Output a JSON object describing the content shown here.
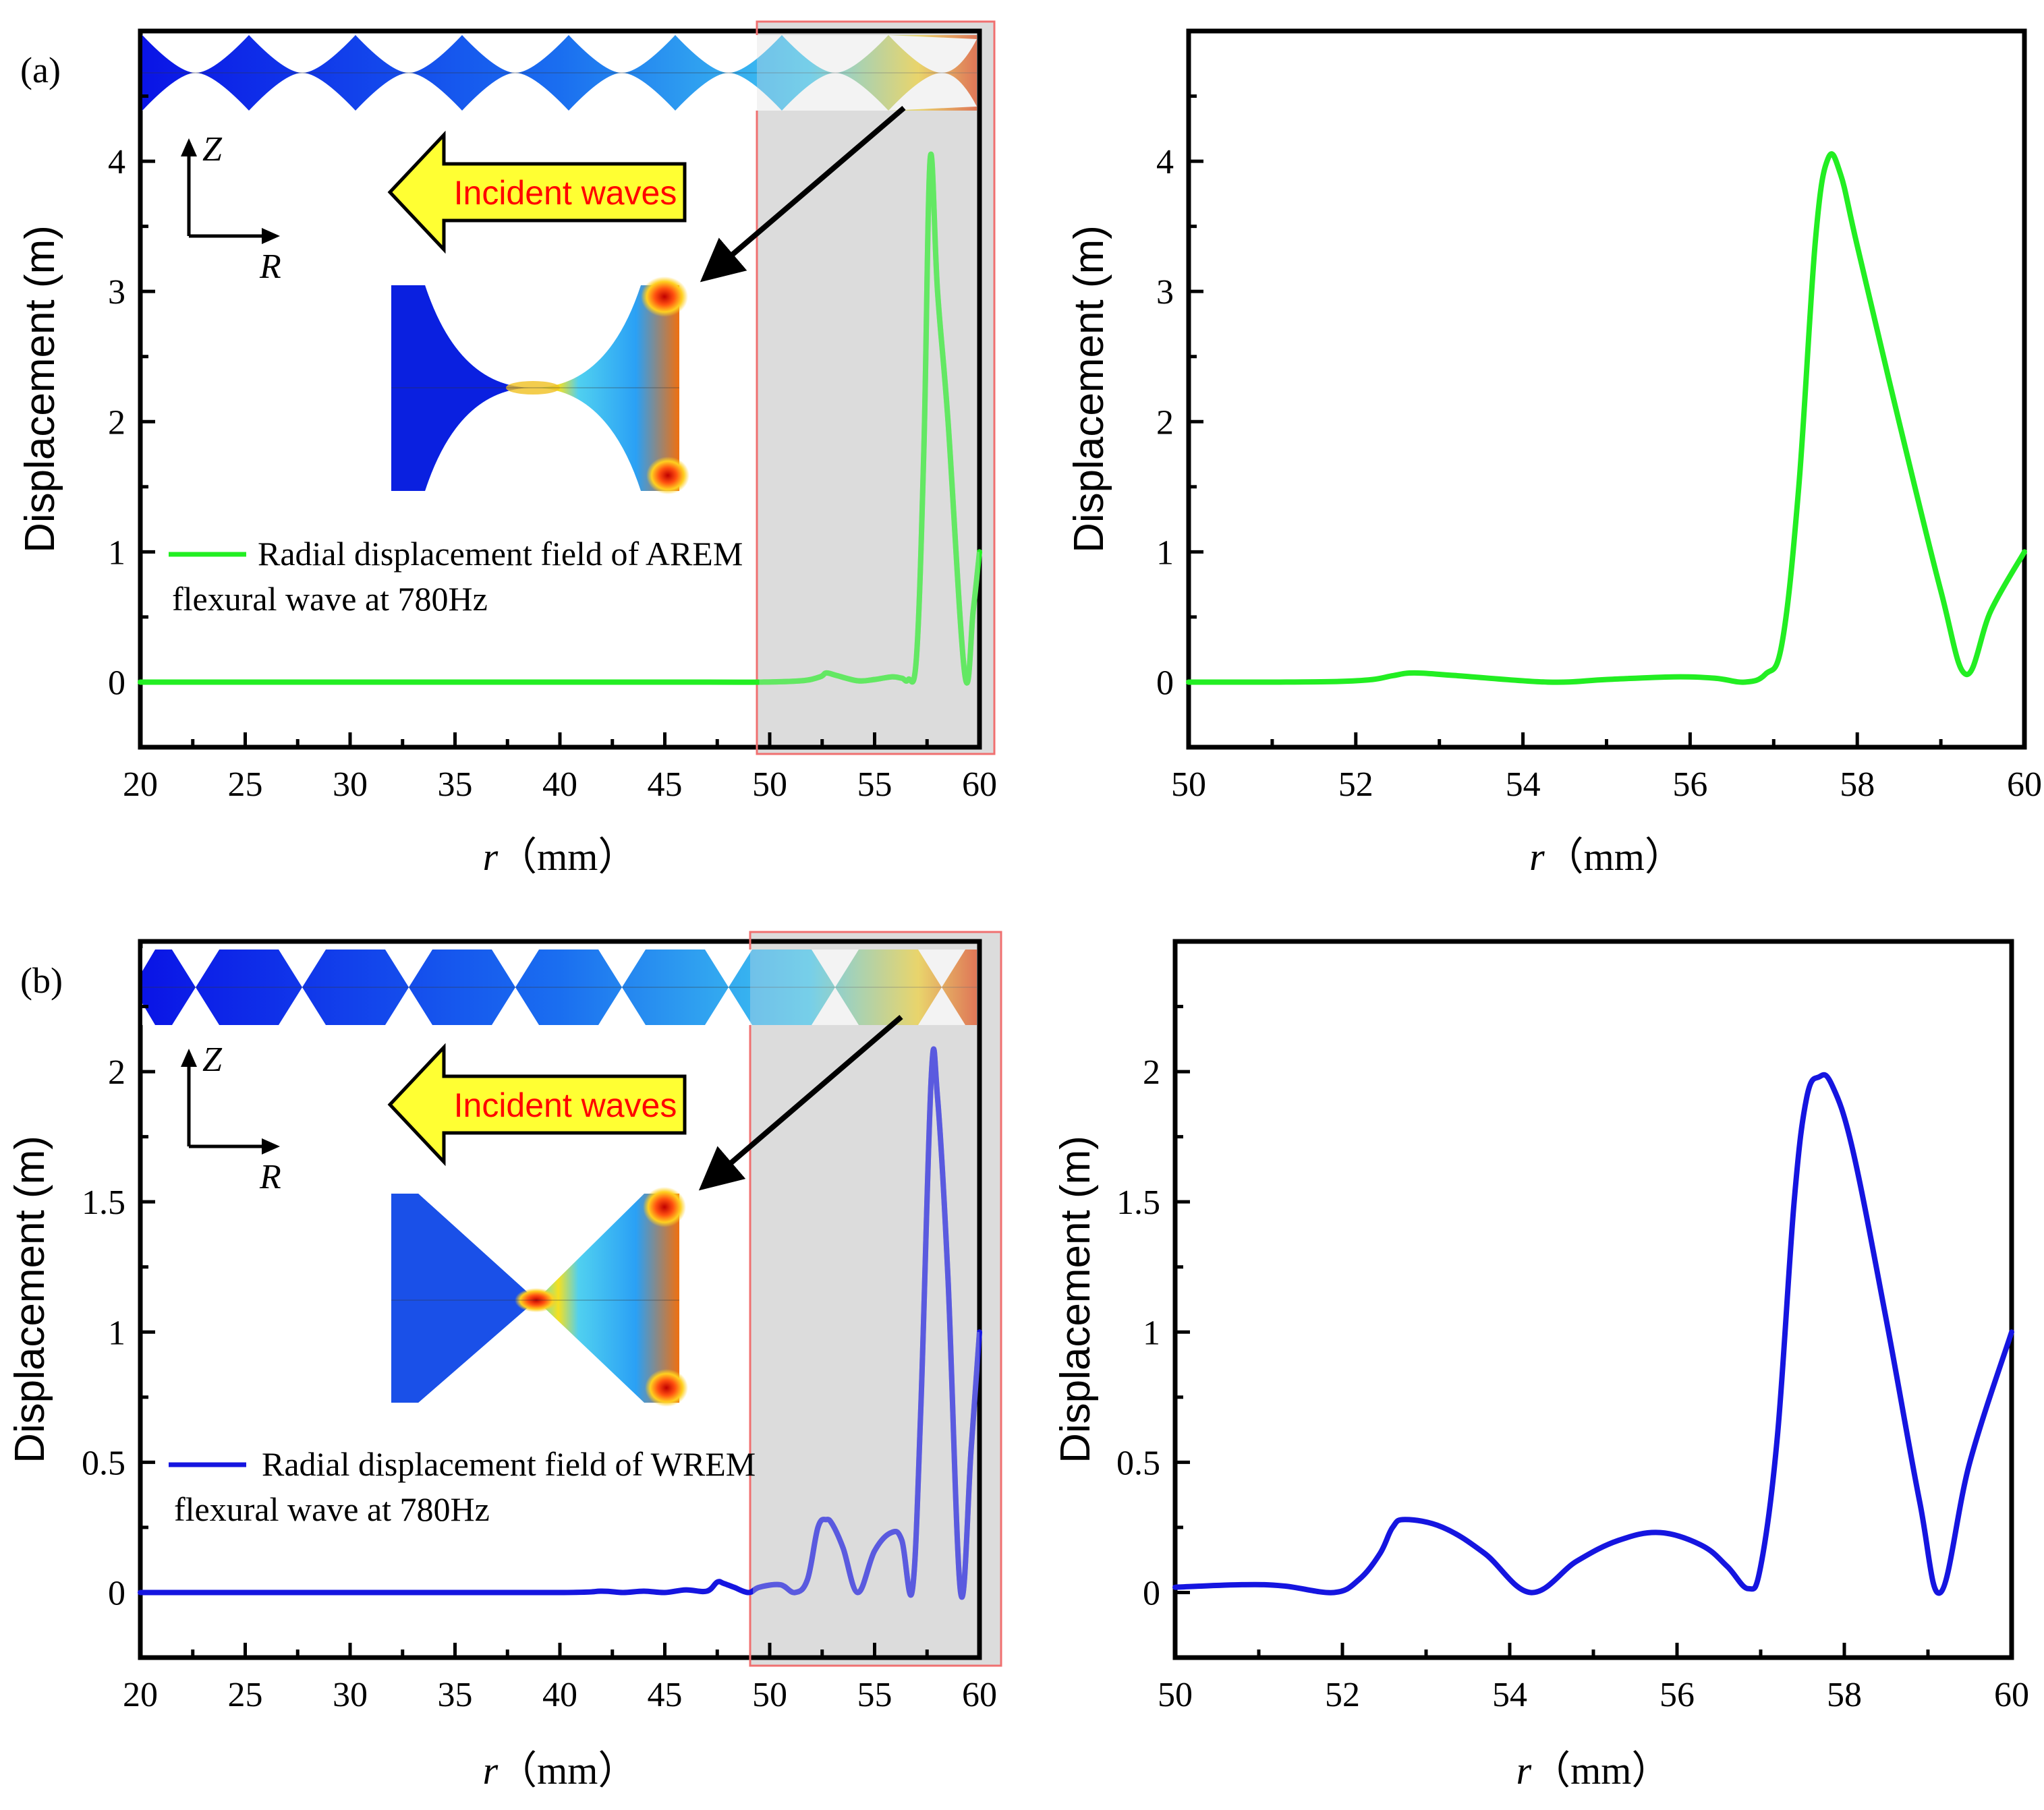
{
  "colors": {
    "series_a": "#22ee22",
    "series_b": "#1515e0",
    "struct_fill": "#0a14e6",
    "highlight_fill": "#dcdcdc",
    "highlight_border": "#f07070",
    "arrow_fill": "#ffff33"
  },
  "panels": {
    "a": {
      "label": "(a)",
      "incident_text": "Incident waves",
      "axis_z": "Z",
      "axis_r": "R",
      "legend_line1": "Radial displacement field of AREM",
      "legend_line2": "flexural wave at 780Hz"
    },
    "b": {
      "label": "(b)",
      "incident_text": "Incident waves",
      "axis_z": "Z",
      "axis_r": "R",
      "legend_line1": "Radial displacement field of WREM",
      "legend_line2": "flexural wave at 780Hz"
    }
  },
  "chart_data": [
    {
      "id": "a-left",
      "type": "line",
      "ylabel": "Displacement (m)",
      "xlabel_var": "r",
      "xlabel_unit": "（mm）",
      "xlim": [
        20,
        60
      ],
      "ylim": [
        -0.5,
        5.0
      ],
      "xticks": [
        20,
        25,
        30,
        35,
        40,
        45,
        50,
        55,
        60
      ],
      "yticks": [
        0,
        1,
        2,
        3,
        4
      ],
      "highlight_x": [
        49.5,
        60.3
      ],
      "series": [
        {
          "name": "Radial displacement field of AREM flexural wave at 780Hz",
          "color": "#22ee22",
          "x": [
            20,
            30,
            40,
            47,
            49.5,
            51.5,
            52.4,
            52.7,
            53.2,
            54.2,
            55.0,
            55.8,
            56.3,
            56.6,
            57.0,
            57.35,
            57.65,
            58.0,
            58.5,
            59.3,
            59.7,
            60.0
          ],
          "y": [
            0,
            0,
            0,
            0.0,
            0.0,
            0.01,
            0.04,
            0.07,
            0.05,
            0.01,
            0.02,
            0.04,
            0.03,
            0.02,
            0.2,
            1.8,
            4.02,
            3.0,
            2.0,
            0.06,
            0.55,
            1.0
          ]
        }
      ]
    },
    {
      "id": "a-right",
      "type": "line",
      "ylabel": "Displacement (m)",
      "xlabel_var": "r",
      "xlabel_unit": "（mm）",
      "xlim": [
        50,
        60
      ],
      "ylim": [
        -0.5,
        5.0
      ],
      "xticks": [
        50,
        52,
        54,
        56,
        58,
        60
      ],
      "yticks": [
        0,
        1,
        2,
        3,
        4
      ],
      "series": [
        {
          "name": "Radial displacement field of AREM flexural wave at 780Hz",
          "color": "#22ee22",
          "x": [
            50.0,
            51.0,
            51.8,
            52.2,
            52.45,
            52.7,
            53.2,
            54.3,
            55.0,
            55.8,
            56.3,
            56.65,
            56.9,
            57.1,
            57.3,
            57.5,
            57.65,
            57.8,
            58.0,
            58.5,
            59.0,
            59.3,
            59.6,
            60.0
          ],
          "y": [
            0.0,
            0.0,
            0.005,
            0.02,
            0.05,
            0.07,
            0.05,
            0.0,
            0.02,
            0.04,
            0.03,
            0.0,
            0.06,
            0.3,
            1.5,
            3.4,
            4.02,
            3.9,
            3.35,
            2.0,
            0.7,
            0.06,
            0.55,
            1.0
          ]
        }
      ]
    },
    {
      "id": "b-left",
      "type": "line",
      "ylabel": "Displacement (m)",
      "xlabel_var": "r",
      "xlabel_unit": "（mm）",
      "xlim": [
        20,
        60
      ],
      "ylim": [
        -0.25,
        2.5
      ],
      "xticks": [
        20,
        25,
        30,
        35,
        40,
        45,
        50,
        55,
        60
      ],
      "yticks": [
        0,
        0.5,
        1,
        1.5,
        2
      ],
      "highlight_x": [
        49.2,
        61.2
      ],
      "series": [
        {
          "name": "Radial displacement field of WREM flexural wave at 780Hz",
          "color": "#1515e0",
          "x": [
            20,
            30,
            40,
            42,
            43,
            44,
            45,
            46,
            47,
            47.5,
            47.8,
            48.3,
            49.0,
            49.5,
            50.5,
            51.2,
            51.8,
            52.3,
            52.7,
            53.0,
            53.5,
            54.2,
            55.0,
            55.8,
            56.3,
            56.8,
            57.2,
            57.7,
            58.0,
            58.5,
            59.1,
            59.6,
            60.0
          ],
          "y": [
            0,
            0,
            0,
            0.005,
            0.0,
            0.005,
            0.0,
            0.01,
            0.005,
            0.04,
            0.035,
            0.02,
            0.0,
            0.02,
            0.03,
            0.0,
            0.05,
            0.25,
            0.28,
            0.26,
            0.17,
            0.0,
            0.16,
            0.23,
            0.2,
            0.01,
            0.7,
            1.98,
            1.9,
            1.2,
            0.0,
            0.55,
            1.0
          ]
        }
      ]
    },
    {
      "id": "b-right",
      "type": "line",
      "ylabel": "Displacement (m)",
      "xlabel_var": "r",
      "xlabel_unit": "（mm）",
      "xlim": [
        50,
        60
      ],
      "ylim": [
        -0.25,
        2.5
      ],
      "xticks": [
        50,
        52,
        54,
        56,
        58,
        60
      ],
      "yticks": [
        0,
        0.5,
        1,
        1.5,
        2
      ],
      "series": [
        {
          "name": "Radial displacement field of WREM flexural wave at 780Hz",
          "color": "#1515e0",
          "x": [
            50.0,
            50.8,
            51.3,
            51.9,
            52.2,
            52.45,
            52.6,
            52.75,
            53.2,
            53.7,
            54.25,
            54.8,
            55.3,
            55.8,
            56.3,
            56.6,
            56.85,
            57.0,
            57.2,
            57.4,
            57.55,
            57.7,
            57.85,
            58.1,
            58.5,
            58.9,
            59.15,
            59.5,
            60.0
          ],
          "y": [
            0.02,
            0.03,
            0.025,
            0.0,
            0.05,
            0.15,
            0.25,
            0.28,
            0.25,
            0.15,
            0.0,
            0.12,
            0.2,
            0.23,
            0.18,
            0.1,
            0.015,
            0.1,
            0.6,
            1.5,
            1.9,
            1.98,
            1.95,
            1.7,
            1.05,
            0.35,
            0.0,
            0.5,
            1.0
          ]
        }
      ]
    }
  ]
}
